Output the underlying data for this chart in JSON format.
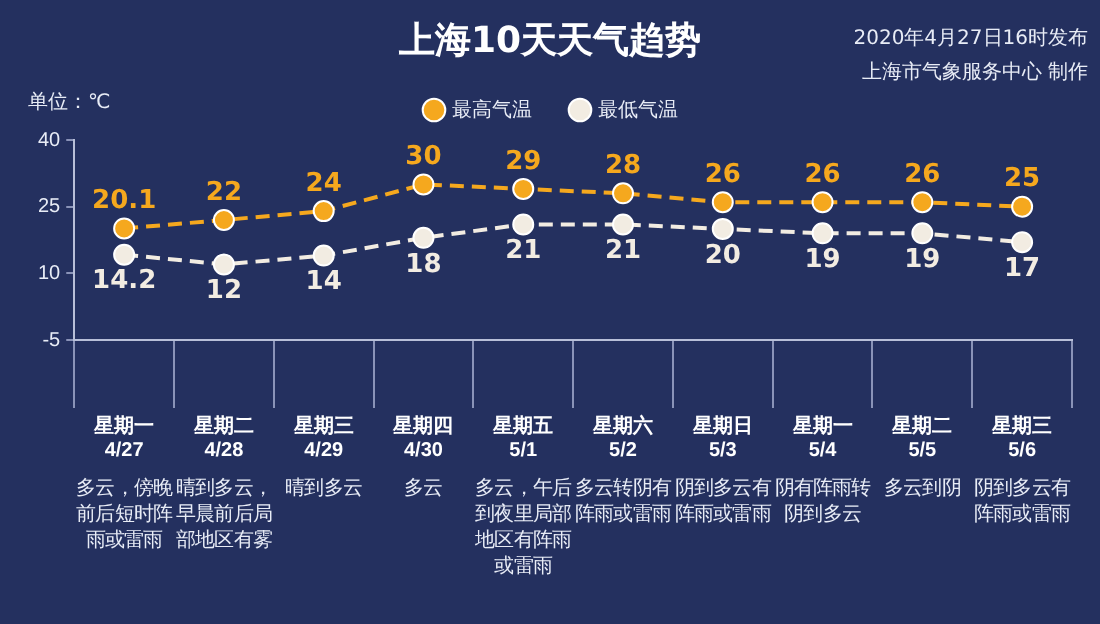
{
  "chart_data": {
    "type": "line",
    "title": "上海10天天气趋势",
    "subtitle": "2020年4月27日16时发布",
    "ylabel": "单位：℃",
    "categories": [
      "星期一\n4/27",
      "星期二\n4/28",
      "星期三\n4/29",
      "星期四\n4/30",
      "星期五\n5/1",
      "星期六\n5/2",
      "星期日\n5/3",
      "星期一\n5/4",
      "星期二\n5/5",
      "星期三\n5/6"
    ],
    "series": [
      {
        "name": "最高气温",
        "color": "#f5a81e",
        "values": [
          20.1,
          22,
          24,
          30,
          29,
          28,
          26,
          26,
          26,
          25
        ]
      },
      {
        "name": "最低气温",
        "color": "#f2ece2",
        "values": [
          14.2,
          12,
          14,
          18,
          21,
          21,
          20,
          19,
          19,
          17
        ]
      }
    ],
    "ylim": [
      -5,
      40
    ],
    "yticks": [
      -5,
      10,
      25,
      40
    ],
    "grid": false,
    "legend": "top",
    "marker": "circle",
    "line_style": "dashed",
    "data_labels": true,
    "annotations": [
      "上海市气象服务中心 制作",
      "多云，傍晚前后短时阵雨或雷雨",
      "晴到多云，早晨前后局部地区有雾",
      "晴到多云",
      "多云",
      "多云，午后到夜里局部地区有阵雨或雷雨",
      "多云转阴有阵雨或雷雨",
      "阴到多云有阵雨或雷雨",
      "阴有阵雨转阴到多云",
      "多云到阴",
      "阴到多云有阵雨或雷雨"
    ]
  }
}
